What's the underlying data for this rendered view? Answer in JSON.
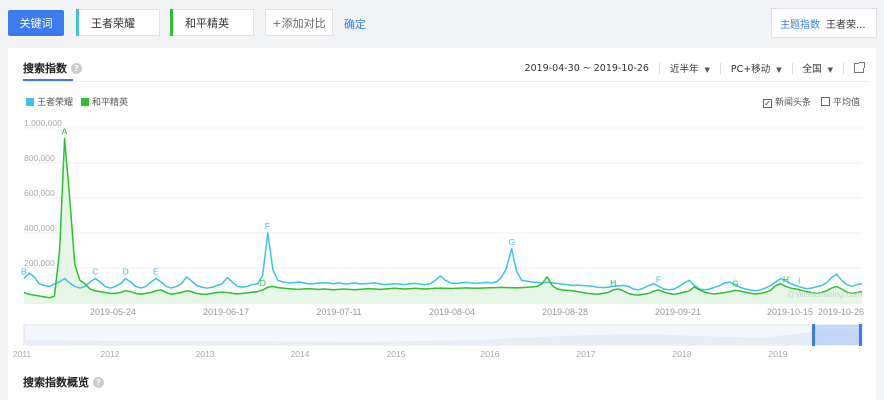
{
  "top": {
    "keyword_button": "关键词",
    "keywords": [
      {
        "label": "王者荣耀",
        "color": "#3bc4e8"
      },
      {
        "label": "和平精英",
        "color": "#2ec02e"
      }
    ],
    "add_compare": "+添加对比",
    "confirm": "确定",
    "topic_label": "主题指数",
    "topic_value": "王者荣..."
  },
  "panel": {
    "title": "搜索指数",
    "date_range": "2019-04-30 ~ 2019-10-26",
    "period": "近半年",
    "device": "PC+移动",
    "region": "全国",
    "legend": [
      {
        "label": "王者荣耀",
        "color": "#3bc4e8"
      },
      {
        "label": "和平精英",
        "color": "#2ec02e"
      }
    ],
    "check_news": "新闻头条",
    "check_avg": "平均值",
    "overview_title": "搜索指数概览",
    "watermark": "@Wisechasing.com"
  },
  "chart_data": {
    "type": "line",
    "ylim": [
      0,
      1000000
    ],
    "y_ticks": [
      "1,000,000",
      "800,000",
      "600,000",
      "400,000",
      "200,000"
    ],
    "x_ticks": [
      "2019-05-24",
      "2019-06-17",
      "2019-07-11",
      "2019-08-04",
      "2019-08-28",
      "2019-09-21",
      "2019-10-15",
      "2019-10-26"
    ],
    "series": [
      {
        "name": "王者荣耀",
        "color": "#3bc4e8",
        "values": [
          140000,
          170000,
          150000,
          110000,
          100000,
          95000,
          110000,
          120000,
          140000,
          115000,
          95000,
          85000,
          95000,
          120000,
          140000,
          120000,
          95000,
          85000,
          95000,
          110000,
          140000,
          120000,
          95000,
          85000,
          95000,
          120000,
          140000,
          120000,
          95000,
          85000,
          95000,
          110000,
          150000,
          125000,
          100000,
          90000,
          85000,
          90000,
          100000,
          110000,
          145000,
          120000,
          95000,
          90000,
          95000,
          105000,
          110000,
          160000,
          400000,
          190000,
          130000,
          120000,
          115000,
          115000,
          120000,
          115000,
          110000,
          110000,
          115000,
          115000,
          115000,
          110000,
          115000,
          110000,
          110000,
          115000,
          110000,
          110000,
          112000,
          115000,
          110000,
          105000,
          108000,
          110000,
          108000,
          105000,
          110000,
          112000,
          108000,
          105000,
          110000,
          130000,
          155000,
          130000,
          115000,
          112000,
          115000,
          118000,
          115000,
          112000,
          115000,
          118000,
          115000,
          120000,
          145000,
          200000,
          310000,
          180000,
          130000,
          125000,
          120000,
          118000,
          115000,
          118000,
          115000,
          112000,
          108000,
          105000,
          100000,
          102000,
          100000,
          98000,
          95000,
          90000,
          88000,
          90000,
          95000,
          98000,
          100000,
          95000,
          80000,
          75000,
          85000,
          100000,
          110000,
          95000,
          80000,
          75000,
          80000,
          95000,
          115000,
          130000,
          100000,
          80000,
          75000,
          80000,
          90000,
          100000,
          115000,
          120000,
          105000,
          90000,
          80000,
          75000,
          70000,
          75000,
          85000,
          100000,
          120000,
          140000,
          125000,
          110000,
          100000,
          90000,
          82000,
          85000,
          92000,
          100000,
          115000,
          145000,
          165000,
          130000,
          105000,
          95000,
          105000,
          110000
        ]
      },
      {
        "name": "和平精英",
        "color": "#2ec02e",
        "values": [
          60000,
          50000,
          45000,
          40000,
          35000,
          30000,
          40000,
          300000,
          940000,
          600000,
          220000,
          130000,
          110000,
          80000,
          70000,
          65000,
          60000,
          55000,
          55000,
          60000,
          70000,
          65000,
          55000,
          50000,
          55000,
          60000,
          70000,
          75000,
          60000,
          50000,
          55000,
          60000,
          70000,
          65000,
          55000,
          50000,
          50000,
          55000,
          60000,
          62000,
          60000,
          55000,
          52000,
          55000,
          58000,
          62000,
          65000,
          75000,
          90000,
          95000,
          88000,
          85000,
          82000,
          80000,
          78000,
          80000,
          82000,
          80000,
          78000,
          80000,
          78000,
          76000,
          78000,
          80000,
          78000,
          76000,
          78000,
          80000,
          82000,
          80000,
          78000,
          80000,
          82000,
          84000,
          82000,
          80000,
          82000,
          84000,
          82000,
          80000,
          82000,
          84000,
          85000,
          84000,
          83000,
          84000,
          85000,
          86000,
          85000,
          84000,
          85000,
          86000,
          87000,
          88000,
          89000,
          88000,
          87000,
          86000,
          88000,
          90000,
          92000,
          95000,
          110000,
          150000,
          100000,
          80000,
          75000,
          72000,
          70000,
          65000,
          60000,
          55000,
          52000,
          50000,
          55000,
          60000,
          75000,
          80000,
          70000,
          55000,
          48000,
          45000,
          50000,
          55000,
          68000,
          75000,
          62000,
          55000,
          50000,
          55000,
          62000,
          70000,
          92000,
          75000,
          62000,
          55000,
          52000,
          55000,
          60000,
          65000,
          72000,
          68000,
          62000,
          56000,
          52000,
          55000,
          62000,
          72000,
          100000,
          110000,
          95000,
          85000,
          80000,
          72000,
          65000,
          60000,
          55000,
          60000,
          70000,
          85000,
          95000,
          80000,
          62000,
          55000,
          60000,
          65000
        ]
      }
    ],
    "annotations": [
      {
        "label": "A",
        "series": 1,
        "index": 8
      },
      {
        "label": "B",
        "series": 0,
        "index": 0
      },
      {
        "label": "C",
        "series": 0,
        "index": 14
      },
      {
        "label": "D",
        "series": 0,
        "index": 20
      },
      {
        "label": "E",
        "series": 0,
        "index": 26
      },
      {
        "label": "D",
        "series": 1,
        "index": 47
      },
      {
        "label": "F",
        "series": 0,
        "index": 48
      },
      {
        "label": "G",
        "series": 0,
        "index": 96
      },
      {
        "label": "H",
        "series": 1,
        "index": 116
      },
      {
        "label": "F",
        "series": 0,
        "index": 125
      },
      {
        "label": "G",
        "series": 1,
        "index": 140
      },
      {
        "label": "H",
        "series": 1,
        "index": 150
      },
      {
        "label": "I",
        "series": 0,
        "index": 153
      }
    ],
    "nav_years": [
      "2011",
      "2012",
      "2013",
      "2014",
      "2015",
      "2016",
      "2017",
      "2018",
      "2019"
    ]
  }
}
